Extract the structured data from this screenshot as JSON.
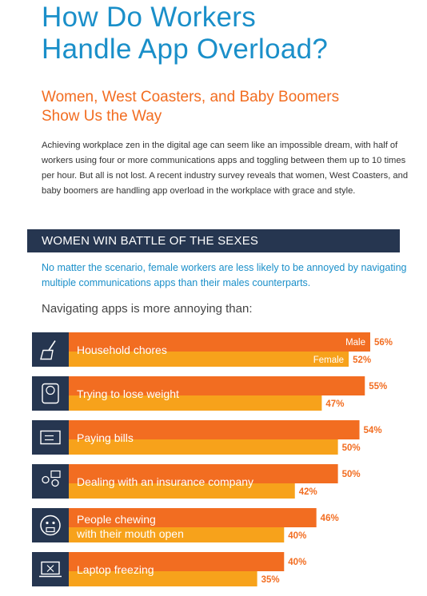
{
  "title": "How Do Workers\nHandle App Overload?",
  "subtitle": "Women, West Coasters, and Baby Boomers\nShow Us the Way",
  "intro": "Achieving workplace zen in the digital age can seem like an impossible dream, with half of workers using four or more communications apps and toggling between them up to 10 times per hour. But all is not lost. A recent industry survey reveals that women, West Coasters, and baby boomers are handling app overload in the workplace with grace and style.",
  "section_banner": "WOMEN WIN BATTLE OF THE SEXES",
  "section_lead": "No matter the scenario, female workers are less likely to be annoyed by navigating multiple communications apps than their males counterparts.",
  "chart_prompt": "Navigating apps is more annoying than:",
  "colors": {
    "male": "#f26d21",
    "female": "#f7a21b",
    "icon_bg": "#263650",
    "title": "#1a8fc9",
    "subtitle": "#f26d21"
  },
  "chart_data": {
    "type": "bar",
    "orientation": "horizontal",
    "title": "Navigating apps is more annoying than:",
    "xlim": [
      0,
      56
    ],
    "legend": "inline on first category",
    "categories": [
      {
        "label": "Household chores",
        "icon": "broom-icon"
      },
      {
        "label": "Trying to lose weight",
        "icon": "scale-icon"
      },
      {
        "label": "Paying bills",
        "icon": "bill-icon"
      },
      {
        "label": "Dealing with an insurance company",
        "icon": "people-chat-icon"
      },
      {
        "label": "People chewing\nwith their mouth open",
        "icon": "chewing-face-icon"
      },
      {
        "label": "Laptop freezing",
        "icon": "frozen-laptop-icon"
      }
    ],
    "series": [
      {
        "name": "Male",
        "values": [
          56,
          55,
          54,
          50,
          46,
          40
        ],
        "labels": [
          "56%",
          "55%",
          "54%",
          "50%",
          "46%",
          "40%"
        ]
      },
      {
        "name": "Female",
        "values": [
          52,
          47,
          50,
          42,
          40,
          35
        ],
        "labels": [
          "52%",
          "47%",
          "50%",
          "42%",
          "40%",
          "35%"
        ]
      }
    ]
  }
}
